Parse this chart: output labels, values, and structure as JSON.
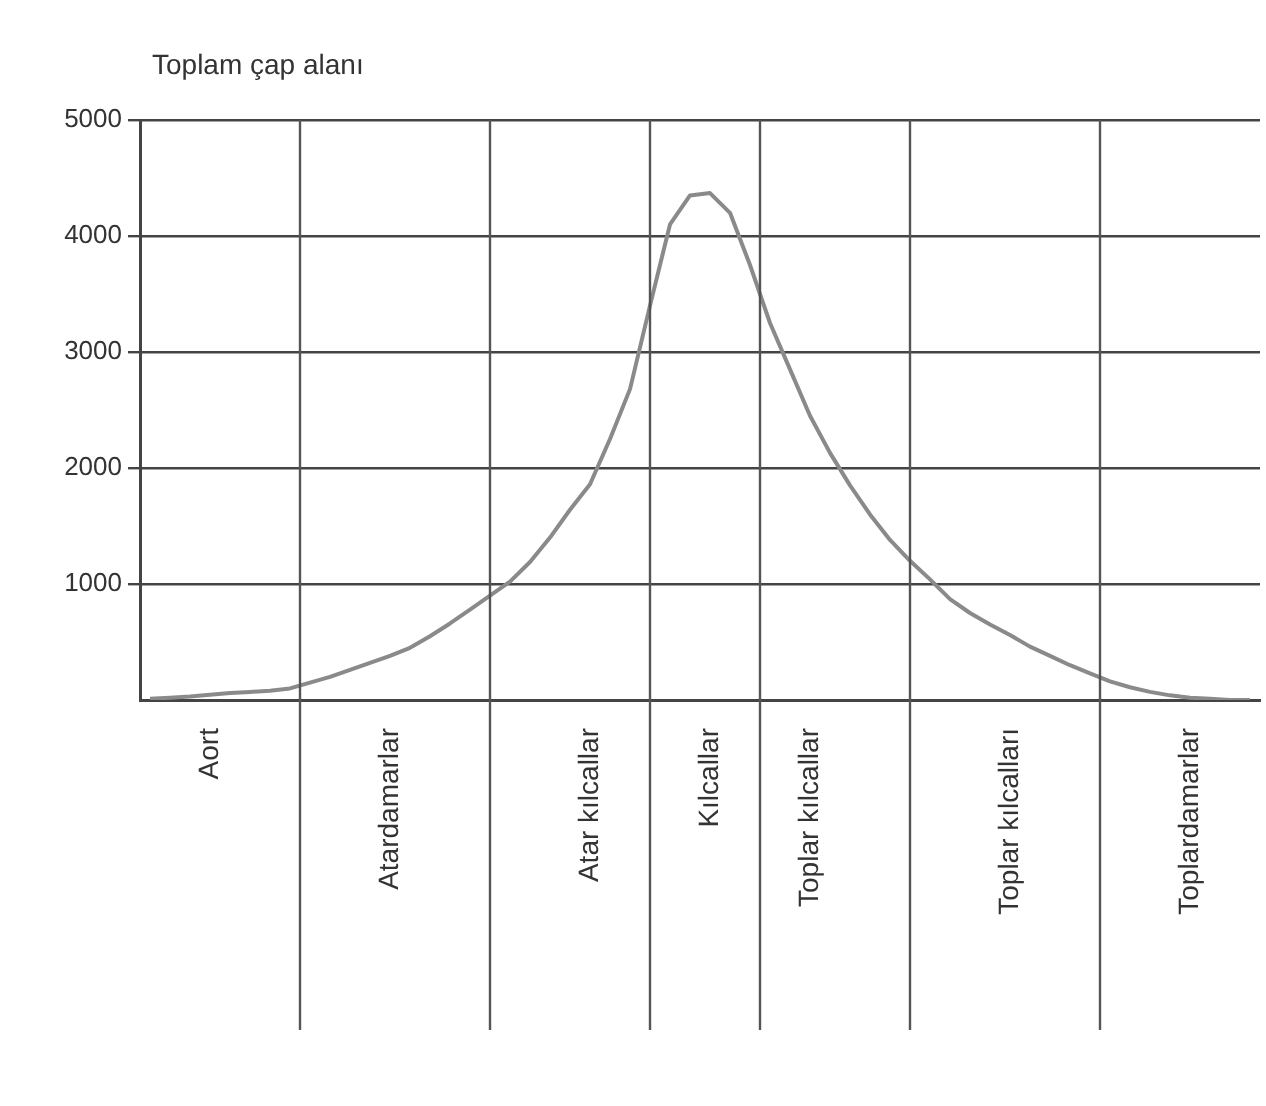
{
  "chart_data": {
    "type": "line",
    "ylabel": "Toplam çap alanı",
    "categories": [
      null,
      null,
      null,
      "Aort",
      null,
      null,
      null,
      null,
      null,
      null,
      null,
      null,
      "Atardamarlar",
      null,
      null,
      null,
      null,
      null,
      null,
      null,
      null,
      null,
      "Atar kılcallar",
      null,
      null,
      null,
      null,
      null,
      "Kılcallar",
      null,
      null,
      null,
      null,
      "Toplar kılcallar",
      null,
      null,
      null,
      null,
      null,
      null,
      null,
      null,
      null,
      "Toplar kılcalları",
      null,
      null,
      null,
      null,
      null,
      null,
      null,
      null,
      "Toplardamarlar",
      null,
      null,
      null
    ],
    "ylim": [
      0,
      5000
    ],
    "yticks": [
      1000,
      2000,
      3000,
      4000,
      5000
    ],
    "grid": "y",
    "legend": false,
    "marker": "none",
    "line_style": "solid",
    "series": [
      {
        "color": "#8a8a8a",
        "values": [
          10,
          20,
          30,
          45,
          60,
          70,
          80,
          100,
          150,
          200,
          260,
          320,
          380,
          450,
          550,
          660,
          780,
          900,
          1020,
          1190,
          1400,
          1640,
          1860,
          2250,
          2680,
          3400,
          4100,
          4350,
          4370,
          4200,
          3750,
          3250,
          2850,
          2450,
          2130,
          1850,
          1600,
          1380,
          1200,
          1040,
          870,
          750,
          650,
          560,
          460,
          380,
          300,
          230,
          160,
          110,
          70,
          40,
          20,
          10,
          0,
          0
        ]
      }
    ]
  }
}
